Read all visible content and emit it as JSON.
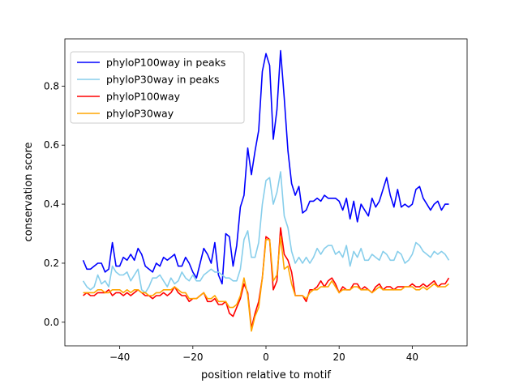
{
  "chart_data": {
    "type": "line",
    "title": "",
    "xlabel": "position relative to motif",
    "ylabel": "conservation score",
    "xlim": [
      -55,
      55
    ],
    "ylim": [
      -0.08,
      0.96
    ],
    "xticks": [
      -40,
      -20,
      0,
      20,
      40
    ],
    "xtick_labels": [
      "−40",
      "−20",
      "0",
      "20",
      "40"
    ],
    "yticks": [
      0.0,
      0.2,
      0.4,
      0.6,
      0.8
    ],
    "ytick_labels": [
      "0.0",
      "0.2",
      "0.4",
      "0.6",
      "0.8"
    ],
    "grid": false,
    "legend_position": "top-left",
    "x_start": -50,
    "x_step": 1,
    "series": [
      {
        "name": "phyloP100way in peaks",
        "color": "#0000ff",
        "values": [
          0.21,
          0.18,
          0.18,
          0.19,
          0.2,
          0.2,
          0.17,
          0.18,
          0.27,
          0.19,
          0.19,
          0.22,
          0.21,
          0.23,
          0.21,
          0.25,
          0.23,
          0.19,
          0.18,
          0.17,
          0.2,
          0.19,
          0.22,
          0.21,
          0.22,
          0.23,
          0.19,
          0.19,
          0.22,
          0.2,
          0.17,
          0.15,
          0.2,
          0.25,
          0.23,
          0.2,
          0.27,
          0.16,
          0.13,
          0.3,
          0.29,
          0.19,
          0.26,
          0.39,
          0.43,
          0.59,
          0.5,
          0.58,
          0.65,
          0.85,
          0.91,
          0.87,
          0.62,
          0.72,
          0.92,
          0.76,
          0.58,
          0.47,
          0.43,
          0.46,
          0.37,
          0.38,
          0.41,
          0.41,
          0.42,
          0.41,
          0.43,
          0.42,
          0.42,
          0.42,
          0.41,
          0.38,
          0.42,
          0.35,
          0.41,
          0.34,
          0.4,
          0.38,
          0.36,
          0.42,
          0.39,
          0.41,
          0.45,
          0.49,
          0.43,
          0.39,
          0.45,
          0.39,
          0.4,
          0.39,
          0.4,
          0.45,
          0.46,
          0.42,
          0.4,
          0.38,
          0.4,
          0.41,
          0.38,
          0.4,
          0.4
        ]
      },
      {
        "name": "phyloP30way in peaks",
        "color": "#87ceeb",
        "values": [
          0.14,
          0.12,
          0.11,
          0.12,
          0.16,
          0.13,
          0.14,
          0.12,
          0.19,
          0.17,
          0.16,
          0.16,
          0.17,
          0.14,
          0.16,
          0.18,
          0.11,
          0.1,
          0.12,
          0.15,
          0.15,
          0.16,
          0.14,
          0.12,
          0.15,
          0.13,
          0.14,
          0.17,
          0.15,
          0.14,
          0.16,
          0.14,
          0.14,
          0.16,
          0.17,
          0.18,
          0.17,
          0.17,
          0.16,
          0.15,
          0.15,
          0.14,
          0.14,
          0.18,
          0.28,
          0.31,
          0.22,
          0.22,
          0.27,
          0.4,
          0.48,
          0.49,
          0.4,
          0.44,
          0.51,
          0.36,
          0.32,
          0.24,
          0.2,
          0.22,
          0.2,
          0.22,
          0.2,
          0.22,
          0.25,
          0.23,
          0.25,
          0.26,
          0.26,
          0.23,
          0.24,
          0.22,
          0.26,
          0.19,
          0.24,
          0.22,
          0.25,
          0.21,
          0.21,
          0.23,
          0.22,
          0.21,
          0.24,
          0.23,
          0.21,
          0.21,
          0.24,
          0.23,
          0.2,
          0.21,
          0.23,
          0.27,
          0.26,
          0.24,
          0.23,
          0.22,
          0.24,
          0.23,
          0.24,
          0.23,
          0.21
        ]
      },
      {
        "name": "phyloP100way",
        "color": "#ff0000",
        "values": [
          0.09,
          0.1,
          0.09,
          0.09,
          0.1,
          0.1,
          0.1,
          0.11,
          0.09,
          0.1,
          0.1,
          0.09,
          0.1,
          0.09,
          0.1,
          0.11,
          0.1,
          0.09,
          0.09,
          0.08,
          0.09,
          0.09,
          0.1,
          0.09,
          0.1,
          0.12,
          0.1,
          0.09,
          0.09,
          0.07,
          0.08,
          0.08,
          0.09,
          0.1,
          0.07,
          0.07,
          0.08,
          0.06,
          0.06,
          0.07,
          0.03,
          0.02,
          0.05,
          0.08,
          0.13,
          0.1,
          -0.02,
          0.03,
          0.07,
          0.15,
          0.29,
          0.28,
          0.11,
          0.14,
          0.32,
          0.23,
          0.21,
          0.17,
          0.09,
          0.09,
          0.09,
          0.07,
          0.11,
          0.11,
          0.12,
          0.14,
          0.12,
          0.14,
          0.15,
          0.13,
          0.1,
          0.12,
          0.11,
          0.11,
          0.13,
          0.13,
          0.11,
          0.12,
          0.11,
          0.1,
          0.12,
          0.13,
          0.11,
          0.12,
          0.12,
          0.11,
          0.12,
          0.12,
          0.12,
          0.12,
          0.13,
          0.12,
          0.12,
          0.13,
          0.12,
          0.13,
          0.14,
          0.12,
          0.13,
          0.13,
          0.15
        ]
      },
      {
        "name": "phyloP30way",
        "color": "#ffa500",
        "values": [
          0.1,
          0.1,
          0.1,
          0.1,
          0.11,
          0.11,
          0.1,
          0.1,
          0.11,
          0.11,
          0.11,
          0.1,
          0.11,
          0.1,
          0.11,
          0.11,
          0.1,
          0.1,
          0.09,
          0.09,
          0.1,
          0.1,
          0.11,
          0.11,
          0.11,
          0.12,
          0.11,
          0.1,
          0.1,
          0.08,
          0.08,
          0.08,
          0.09,
          0.1,
          0.08,
          0.08,
          0.09,
          0.07,
          0.07,
          0.07,
          0.05,
          0.05,
          0.06,
          0.09,
          0.15,
          0.09,
          -0.03,
          0.02,
          0.05,
          0.15,
          0.28,
          0.28,
          0.14,
          0.16,
          0.29,
          0.18,
          0.19,
          0.13,
          0.09,
          0.09,
          0.09,
          0.08,
          0.1,
          0.11,
          0.11,
          0.12,
          0.12,
          0.12,
          0.14,
          0.12,
          0.1,
          0.11,
          0.11,
          0.11,
          0.12,
          0.12,
          0.11,
          0.11,
          0.11,
          0.1,
          0.11,
          0.12,
          0.11,
          0.11,
          0.11,
          0.11,
          0.11,
          0.11,
          0.12,
          0.12,
          0.12,
          0.11,
          0.11,
          0.12,
          0.11,
          0.12,
          0.13,
          0.12,
          0.12,
          0.12,
          0.13
        ]
      }
    ]
  }
}
